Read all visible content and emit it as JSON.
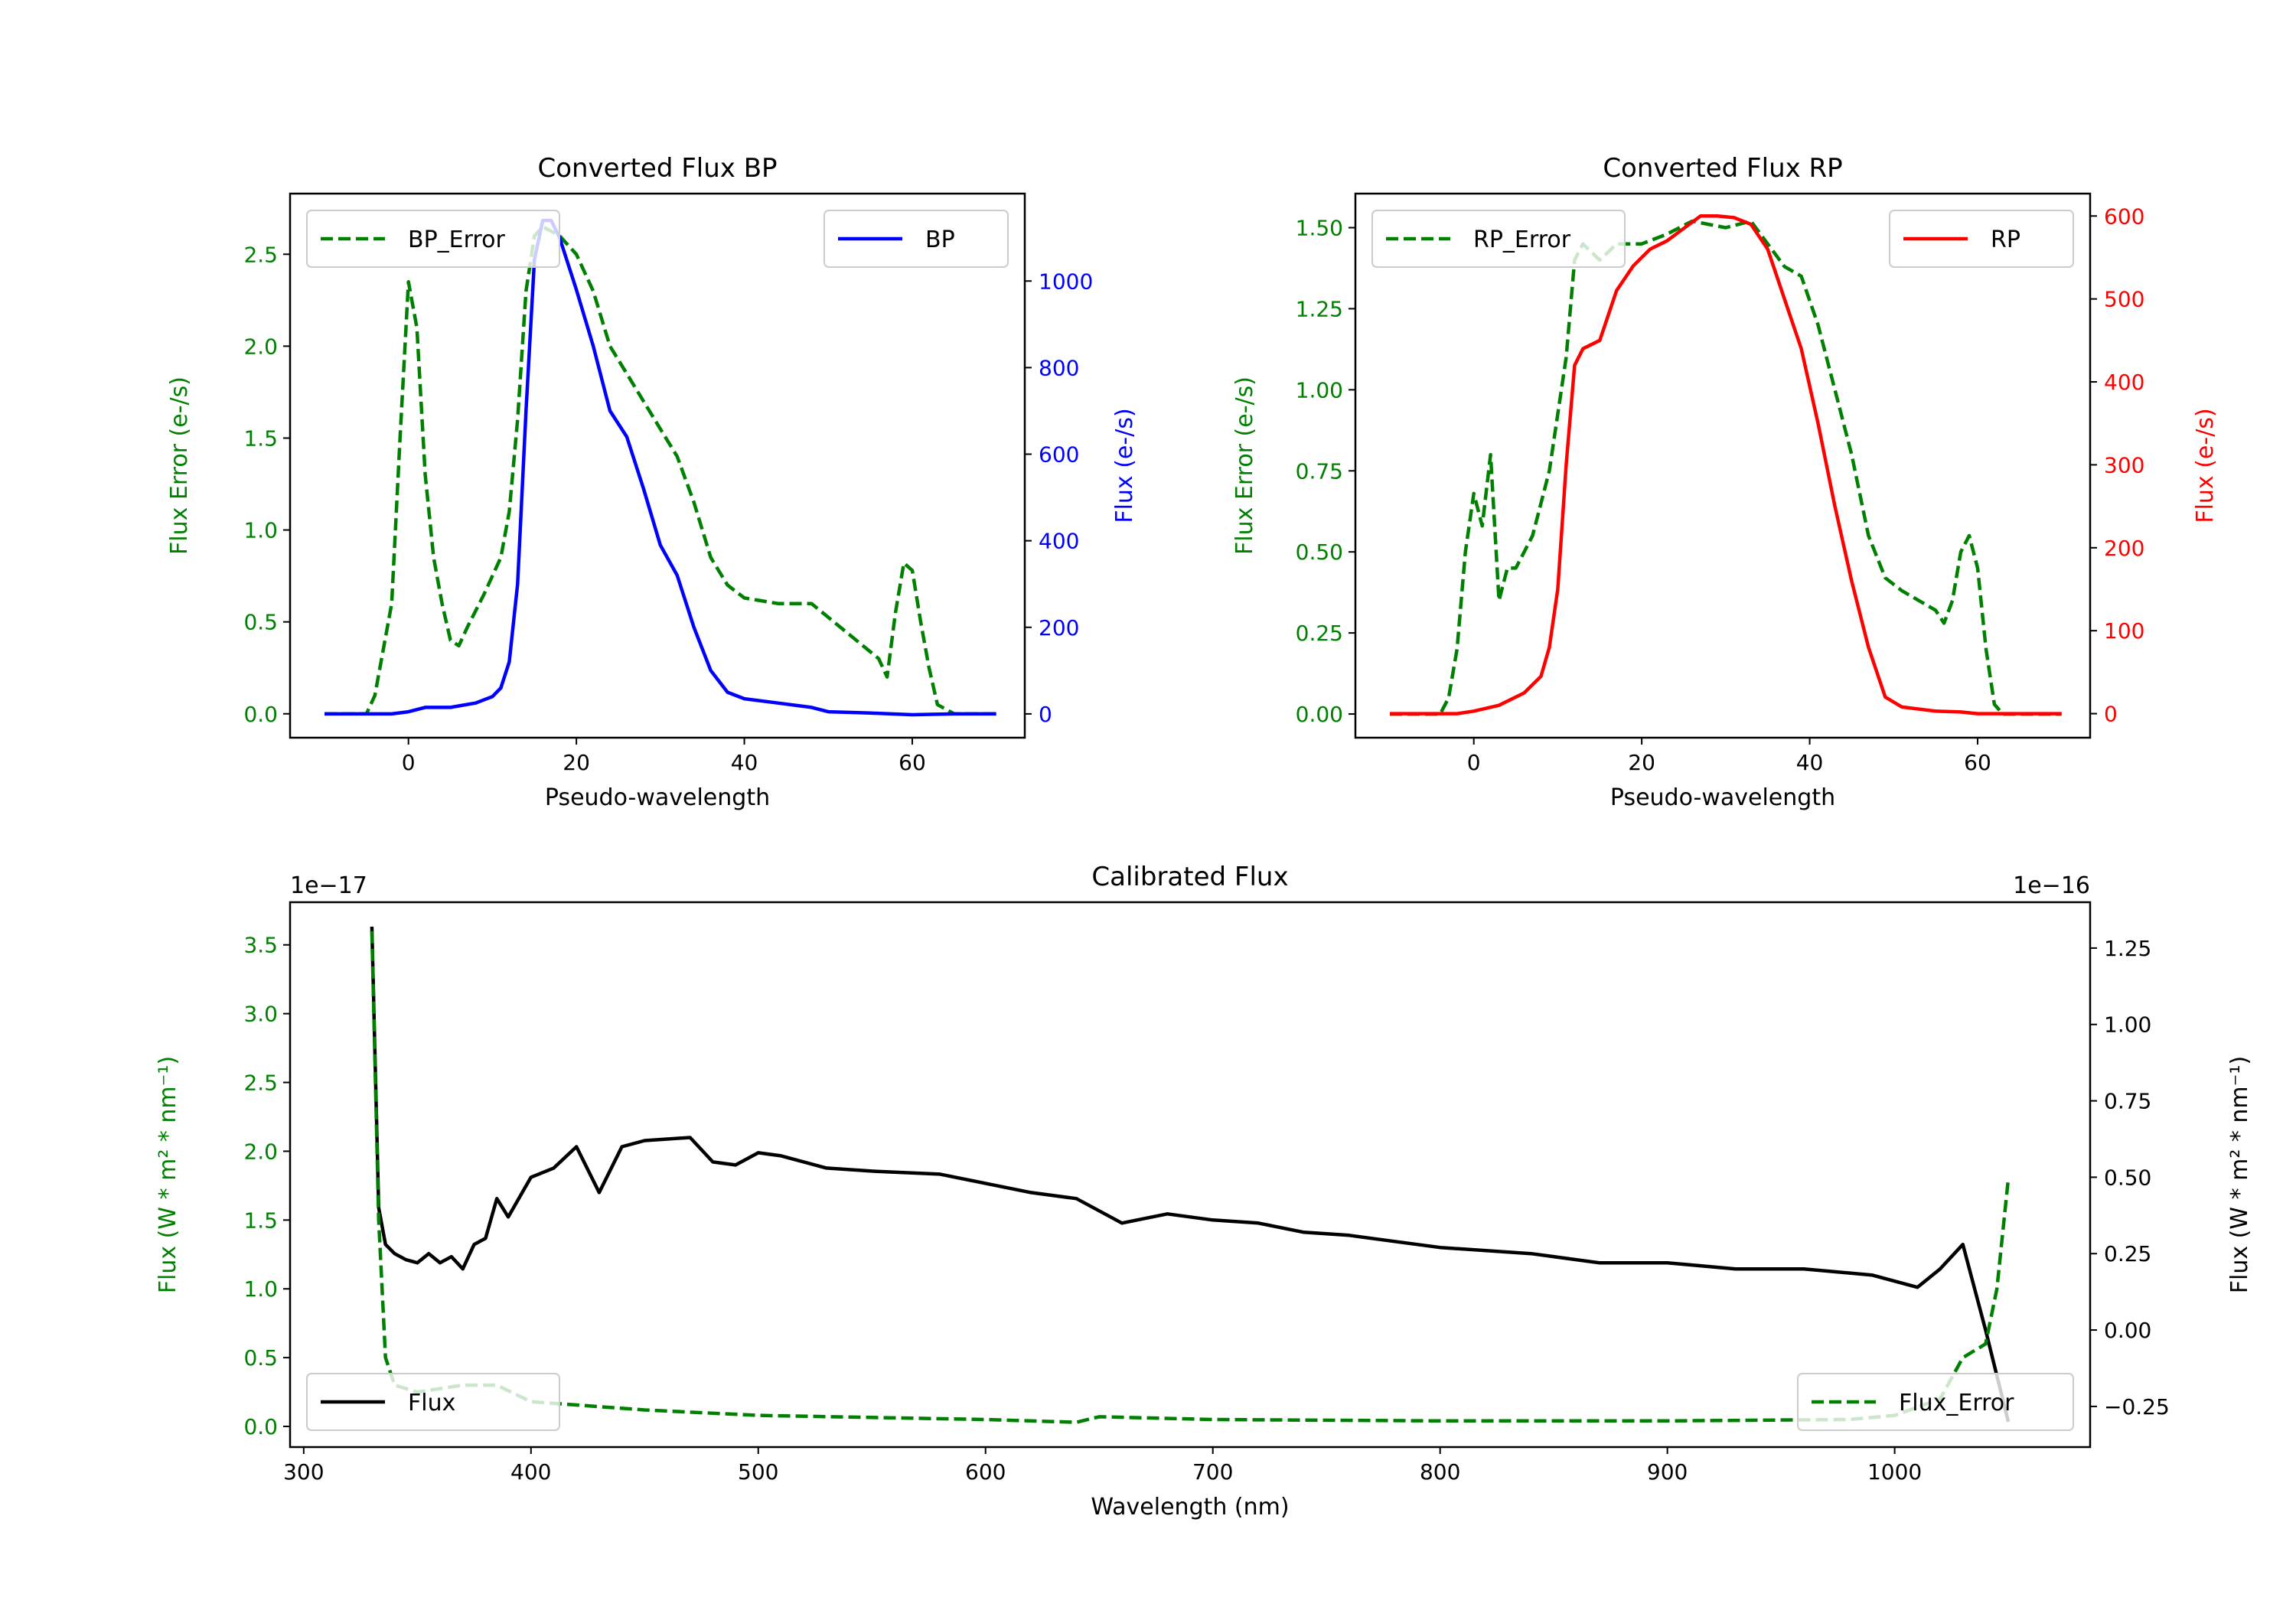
{
  "chart_data": [
    {
      "type": "line",
      "title": "Converted Flux BP",
      "xlabel": "Pseudo-wavelength",
      "ylabel": "Flux Error (e-/s)",
      "ylabel_right": "Flux (e-/s)",
      "xlim": [
        -14.1,
        73.4
      ],
      "ylim": [
        -0.13,
        2.83
      ],
      "ylim_right": [
        -55,
        1202
      ],
      "xticks": [
        "0",
        "20",
        "40",
        "60"
      ],
      "yticks": [
        "0.0",
        "0.5",
        "1.0",
        "1.5",
        "2.0",
        "2.5"
      ],
      "yticks_right": [
        "0",
        "200",
        "400",
        "600",
        "800",
        "1000"
      ],
      "left_color": "#008000",
      "right_color": "#0000ff",
      "legend_left": {
        "label": "BP_Error",
        "placement": "upper left"
      },
      "legend_right": {
        "label": "BP",
        "placement": "upper right"
      },
      "series": [
        {
          "name": "BP_Error",
          "axis": "left",
          "style": "dashed",
          "color": "#008000",
          "x": [
            -10,
            -5,
            -4,
            -2,
            -1,
            0,
            1,
            2,
            3,
            4,
            5,
            6,
            7,
            9,
            11,
            12,
            13,
            14,
            15,
            16,
            18,
            20,
            22,
            24,
            26,
            28,
            30,
            32,
            34,
            36,
            38,
            40,
            44,
            48,
            52,
            56,
            57,
            58,
            59,
            60,
            61,
            62,
            63,
            65,
            70
          ],
          "y": [
            0,
            0,
            0.1,
            0.6,
            1.5,
            2.35,
            2.1,
            1.3,
            0.85,
            0.6,
            0.4,
            0.37,
            0.47,
            0.65,
            0.85,
            1.1,
            1.6,
            2.3,
            2.6,
            2.65,
            2.6,
            2.5,
            2.3,
            2.0,
            1.85,
            1.7,
            1.55,
            1.4,
            1.15,
            0.85,
            0.7,
            0.63,
            0.6,
            0.6,
            0.45,
            0.3,
            0.2,
            0.55,
            0.82,
            0.78,
            0.5,
            0.25,
            0.05,
            0,
            0
          ]
        },
        {
          "name": "BP",
          "axis": "right",
          "style": "solid",
          "color": "#0000ff",
          "x": [
            -10,
            -2,
            0,
            2,
            5,
            8,
            10,
            11,
            12,
            13,
            14,
            15,
            16,
            17,
            18,
            20,
            22,
            24,
            26,
            28,
            30,
            32,
            34,
            36,
            38,
            40,
            44,
            48,
            50,
            55,
            60,
            65,
            70
          ],
          "y": [
            0,
            0,
            5,
            15,
            15,
            25,
            40,
            60,
            120,
            300,
            700,
            1050,
            1140,
            1140,
            1100,
            980,
            850,
            700,
            640,
            520,
            390,
            320,
            200,
            100,
            50,
            35,
            25,
            15,
            5,
            2,
            -2,
            0,
            0
          ]
        }
      ]
    },
    {
      "type": "line",
      "title": "Converted Flux RP",
      "xlabel": "Pseudo-wavelength",
      "ylabel": "Flux Error (e-/s)",
      "ylabel_right": "Flux (e-/s)",
      "xlim": [
        -14.1,
        73.4
      ],
      "ylim": [
        -0.073,
        1.605
      ],
      "ylim_right": [
        -29,
        627
      ],
      "xticks": [
        "0",
        "20",
        "40",
        "60"
      ],
      "yticks": [
        "0.00",
        "0.25",
        "0.50",
        "0.75",
        "1.00",
        "1.25",
        "1.50"
      ],
      "yticks_right": [
        "0",
        "100",
        "200",
        "300",
        "400",
        "500",
        "600"
      ],
      "left_color": "#008000",
      "right_color": "#ff0000",
      "legend_left": {
        "label": "RP_Error",
        "placement": "upper left"
      },
      "legend_right": {
        "label": "RP",
        "placement": "upper right"
      },
      "series": [
        {
          "name": "RP_Error",
          "axis": "left",
          "style": "dashed",
          "color": "#008000",
          "x": [
            -10,
            -4,
            -3,
            -2,
            -1,
            0,
            1,
            2,
            3,
            4,
            5,
            7,
            9,
            11,
            12,
            13,
            15,
            17,
            20,
            23,
            26,
            30,
            33,
            35,
            37,
            39,
            41,
            43,
            45,
            47,
            49,
            51,
            53,
            55,
            56,
            57,
            58,
            59,
            60,
            61,
            62,
            63,
            70
          ],
          "y": [
            0,
            0,
            0.05,
            0.2,
            0.5,
            0.68,
            0.58,
            0.8,
            0.35,
            0.45,
            0.45,
            0.55,
            0.75,
            1.1,
            1.4,
            1.45,
            1.4,
            1.45,
            1.45,
            1.48,
            1.52,
            1.5,
            1.52,
            1.45,
            1.38,
            1.35,
            1.2,
            1.0,
            0.8,
            0.55,
            0.42,
            0.38,
            0.35,
            0.32,
            0.28,
            0.35,
            0.5,
            0.55,
            0.45,
            0.2,
            0.03,
            0,
            0
          ]
        },
        {
          "name": "RP",
          "axis": "right",
          "style": "solid",
          "color": "#ff0000",
          "x": [
            -10,
            -2,
            0,
            3,
            6,
            8,
            9,
            10,
            11,
            12,
            13,
            15,
            17,
            19,
            21,
            23,
            25,
            27,
            29,
            31,
            33,
            35,
            37,
            39,
            41,
            43,
            45,
            47,
            49,
            51,
            55,
            58,
            60,
            70
          ],
          "y": [
            0,
            0,
            3,
            10,
            25,
            45,
            80,
            150,
            300,
            420,
            440,
            450,
            510,
            540,
            560,
            570,
            585,
            600,
            600,
            598,
            590,
            560,
            500,
            440,
            350,
            250,
            160,
            80,
            20,
            8,
            3,
            2,
            0,
            0
          ]
        }
      ]
    },
    {
      "type": "line",
      "title": "Calibrated Flux",
      "xlabel": "Wavelength (nm)",
      "ylabel": "Flux (W * m² * nm⁻¹)",
      "ylabel_right": "Flux (W * m² * nm⁻¹)",
      "offset_left": "1e−17",
      "offset_right": "1e−16",
      "xlim": [
        294,
        1086
      ],
      "ylim": [
        -0.15,
        3.81
      ],
      "ylim_right": [
        -0.383,
        1.4
      ],
      "xticks": [
        "300",
        "400",
        "500",
        "600",
        "700",
        "800",
        "900",
        "1000"
      ],
      "yticks": [
        "0.0",
        "0.5",
        "1.0",
        "1.5",
        "2.0",
        "2.5",
        "3.0",
        "3.5"
      ],
      "yticks_right": [
        "−0.25",
        "0.00",
        "0.25",
        "0.50",
        "0.75",
        "1.00",
        "1.25"
      ],
      "left_color": "#008000",
      "right_color": "#000000",
      "legend_left": {
        "label": "Flux",
        "placement": "lower left"
      },
      "legend_right": {
        "label": "Flux_Error",
        "placement": "lower right"
      },
      "series": [
        {
          "name": "Flux",
          "axis": "right",
          "style": "solid",
          "color": "#000000",
          "x": [
            330,
            333,
            336,
            340,
            345,
            350,
            355,
            360,
            365,
            370,
            375,
            380,
            385,
            390,
            400,
            410,
            420,
            430,
            440,
            450,
            470,
            480,
            490,
            500,
            510,
            530,
            550,
            580,
            600,
            620,
            640,
            660,
            680,
            700,
            720,
            740,
            760,
            780,
            800,
            840,
            870,
            900,
            930,
            960,
            990,
            1010,
            1020,
            1030,
            1040,
            1050
          ],
          "y": [
            1.32,
            0.4,
            0.28,
            0.25,
            0.23,
            0.22,
            0.25,
            0.22,
            0.24,
            0.2,
            0.28,
            0.3,
            0.43,
            0.37,
            0.5,
            0.53,
            0.6,
            0.45,
            0.6,
            0.62,
            0.63,
            0.55,
            0.54,
            0.58,
            0.57,
            0.53,
            0.52,
            0.51,
            0.48,
            0.45,
            0.43,
            0.35,
            0.38,
            0.36,
            0.35,
            0.32,
            0.31,
            0.29,
            0.27,
            0.25,
            0.22,
            0.22,
            0.2,
            0.2,
            0.18,
            0.14,
            0.2,
            0.28,
            0.0,
            -0.3
          ]
        },
        {
          "name": "Flux_Error",
          "axis": "left",
          "style": "dashed",
          "color": "#008000",
          "x": [
            330,
            333,
            336,
            340,
            350,
            370,
            385,
            400,
            450,
            500,
            600,
            640,
            650,
            700,
            800,
            900,
            980,
            1000,
            1020,
            1030,
            1040,
            1045,
            1050
          ],
          "y": [
            3.6,
            1.5,
            0.5,
            0.3,
            0.25,
            0.3,
            0.3,
            0.18,
            0.12,
            0.08,
            0.05,
            0.03,
            0.07,
            0.05,
            0.04,
            0.04,
            0.05,
            0.08,
            0.2,
            0.5,
            0.6,
            1.0,
            1.8
          ]
        }
      ]
    }
  ]
}
